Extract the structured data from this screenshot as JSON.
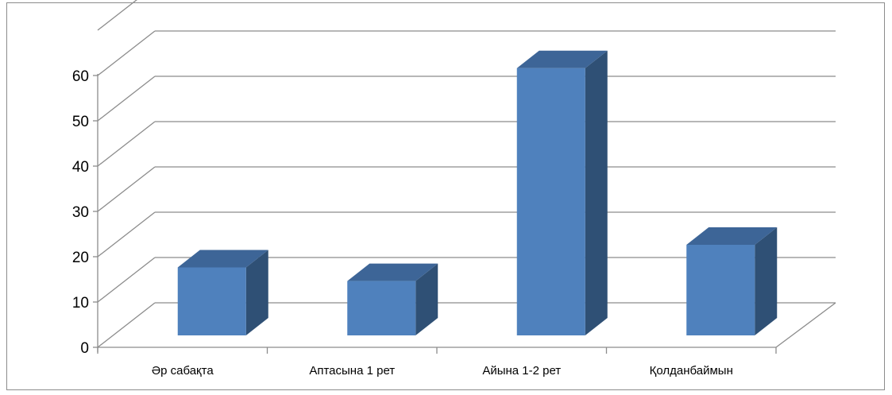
{
  "chart_data": {
    "type": "bar",
    "style": "3d-column",
    "categories": [
      "Әр сабақта",
      "Аптасына 1 рет",
      "Айына 1-2 рет",
      "Қолданбаймын"
    ],
    "values": [
      15,
      12,
      59,
      20
    ],
    "ylim": [
      0,
      60
    ],
    "yticks": [
      "0",
      "10",
      "20",
      "30",
      "40",
      "50",
      "60"
    ],
    "grid": true,
    "legend": "none",
    "colors": {
      "front": "#4f81bd",
      "top": "#3d6597",
      "side": "#2f5075",
      "grid": "#8c8c8c"
    }
  }
}
